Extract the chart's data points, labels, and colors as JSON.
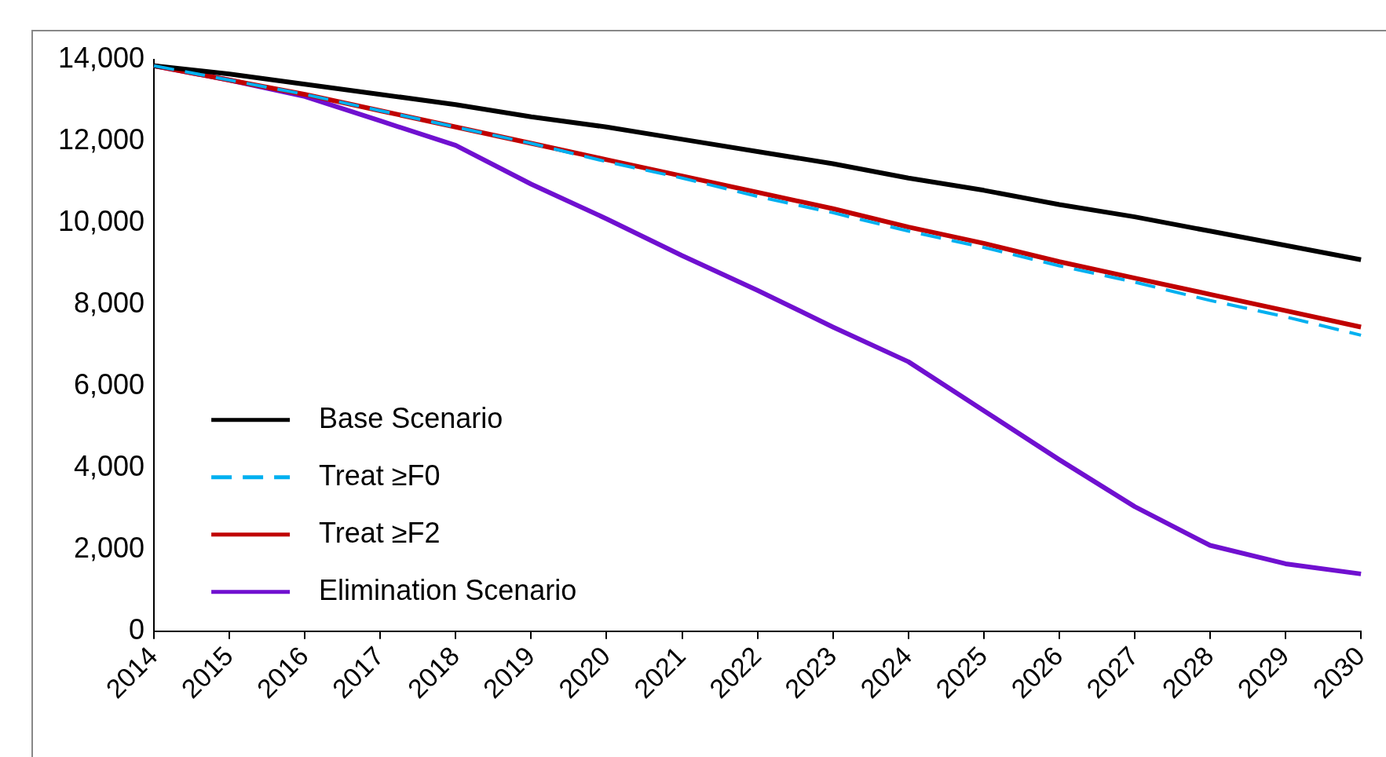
{
  "chart_data": {
    "type": "line",
    "categories": [
      "2014",
      "2015",
      "2016",
      "2017",
      "2018",
      "2019",
      "2020",
      "2021",
      "2022",
      "2023",
      "2024",
      "2025",
      "2026",
      "2027",
      "2028",
      "2029",
      "2030"
    ],
    "ylim": [
      0,
      14000
    ],
    "yticks": [
      {
        "value": 0,
        "label": "0"
      },
      {
        "value": 2000,
        "label": "2,000"
      },
      {
        "value": 4000,
        "label": "4,000"
      },
      {
        "value": 6000,
        "label": "6,000"
      },
      {
        "value": 8000,
        "label": "8,000"
      },
      {
        "value": 10000,
        "label": "10,000"
      },
      {
        "value": 12000,
        "label": "12,000"
      },
      {
        "value": 14000,
        "label": "14,000"
      }
    ],
    "grid": false,
    "legend": "bottom left",
    "marker": "none",
    "series": [
      {
        "name": "Base Scenario",
        "color": "#000000",
        "line_style": "solid",
        "values": [
          13850,
          13650,
          13400,
          13150,
          12900,
          12600,
          12350,
          12050,
          11750,
          11450,
          11100,
          10800,
          10450,
          10150,
          9800,
          9450,
          9100
        ]
      },
      {
        "name": "Treat ≥F0",
        "color": "#00b0f0",
        "line_style": "dashed",
        "values": [
          13850,
          13500,
          13150,
          12750,
          12350,
          11950,
          11500,
          11100,
          10650,
          10250,
          9800,
          9400,
          8950,
          8550,
          8100,
          7700,
          7250
        ]
      },
      {
        "name": "Treat ≥F2",
        "color": "#c00000",
        "line_style": "solid",
        "values": [
          13850,
          13500,
          13150,
          12750,
          12350,
          11950,
          11550,
          11150,
          10750,
          10350,
          9900,
          9500,
          9050,
          8650,
          8250,
          7850,
          7450
        ]
      },
      {
        "name": "Elimination Scenario",
        "color": "#7010d0",
        "line_style": "solid",
        "values": [
          13850,
          13500,
          13100,
          12500,
          11900,
          10950,
          10100,
          9200,
          8350,
          7450,
          6600,
          5400,
          4200,
          3050,
          2100,
          1650,
          1400
        ]
      }
    ]
  }
}
